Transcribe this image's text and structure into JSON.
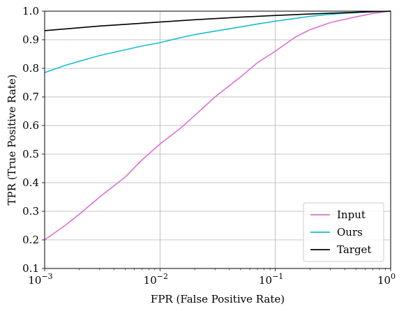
{
  "chart_data": {
    "type": "line",
    "xlabel": "FPR (False Positive Rate)",
    "ylabel": "TPR (True Positive Rate)",
    "xscale": "log",
    "xlim": [
      0.001,
      1
    ],
    "ylim": [
      0.1,
      1.0
    ],
    "grid": true,
    "legend_position": "bottom-right",
    "x_ticks": [
      {
        "value": 0.001,
        "base": "10",
        "exp": "−3"
      },
      {
        "value": 0.01,
        "base": "10",
        "exp": "−2"
      },
      {
        "value": 0.1,
        "base": "10",
        "exp": "−1"
      },
      {
        "value": 1,
        "base": "10",
        "exp": "0"
      }
    ],
    "y_ticks": [
      "0.1",
      "0.2",
      "0.3",
      "0.4",
      "0.5",
      "0.6",
      "0.7",
      "0.8",
      "0.9",
      "1.0"
    ],
    "series": [
      {
        "name": "Input",
        "color": "#da70d6",
        "x": [
          0.001,
          0.0015,
          0.002,
          0.003,
          0.005,
          0.007,
          0.01,
          0.015,
          0.02,
          0.03,
          0.05,
          0.07,
          0.1,
          0.15,
          0.2,
          0.3,
          0.5,
          0.7,
          1.0
        ],
        "y": [
          0.2,
          0.25,
          0.29,
          0.35,
          0.42,
          0.48,
          0.535,
          0.59,
          0.635,
          0.7,
          0.77,
          0.82,
          0.86,
          0.91,
          0.935,
          0.96,
          0.98,
          0.992,
          1.0
        ]
      },
      {
        "name": "Ours",
        "color": "#17becf",
        "x": [
          0.001,
          0.0015,
          0.002,
          0.003,
          0.005,
          0.007,
          0.01,
          0.015,
          0.02,
          0.03,
          0.05,
          0.07,
          0.1,
          0.15,
          0.2,
          0.3,
          0.5,
          0.7,
          1.0
        ],
        "y": [
          0.785,
          0.81,
          0.825,
          0.845,
          0.865,
          0.878,
          0.89,
          0.907,
          0.918,
          0.93,
          0.945,
          0.955,
          0.965,
          0.975,
          0.982,
          0.989,
          0.995,
          0.998,
          1.0
        ]
      },
      {
        "name": "Target",
        "color": "#000000",
        "x": [
          0.001,
          0.002,
          0.003,
          0.005,
          0.01,
          0.02,
          0.05,
          0.1,
          0.2,
          0.5,
          1.0
        ],
        "y": [
          0.932,
          0.942,
          0.948,
          0.954,
          0.962,
          0.97,
          0.979,
          0.985,
          0.99,
          0.996,
          1.0
        ]
      }
    ]
  }
}
